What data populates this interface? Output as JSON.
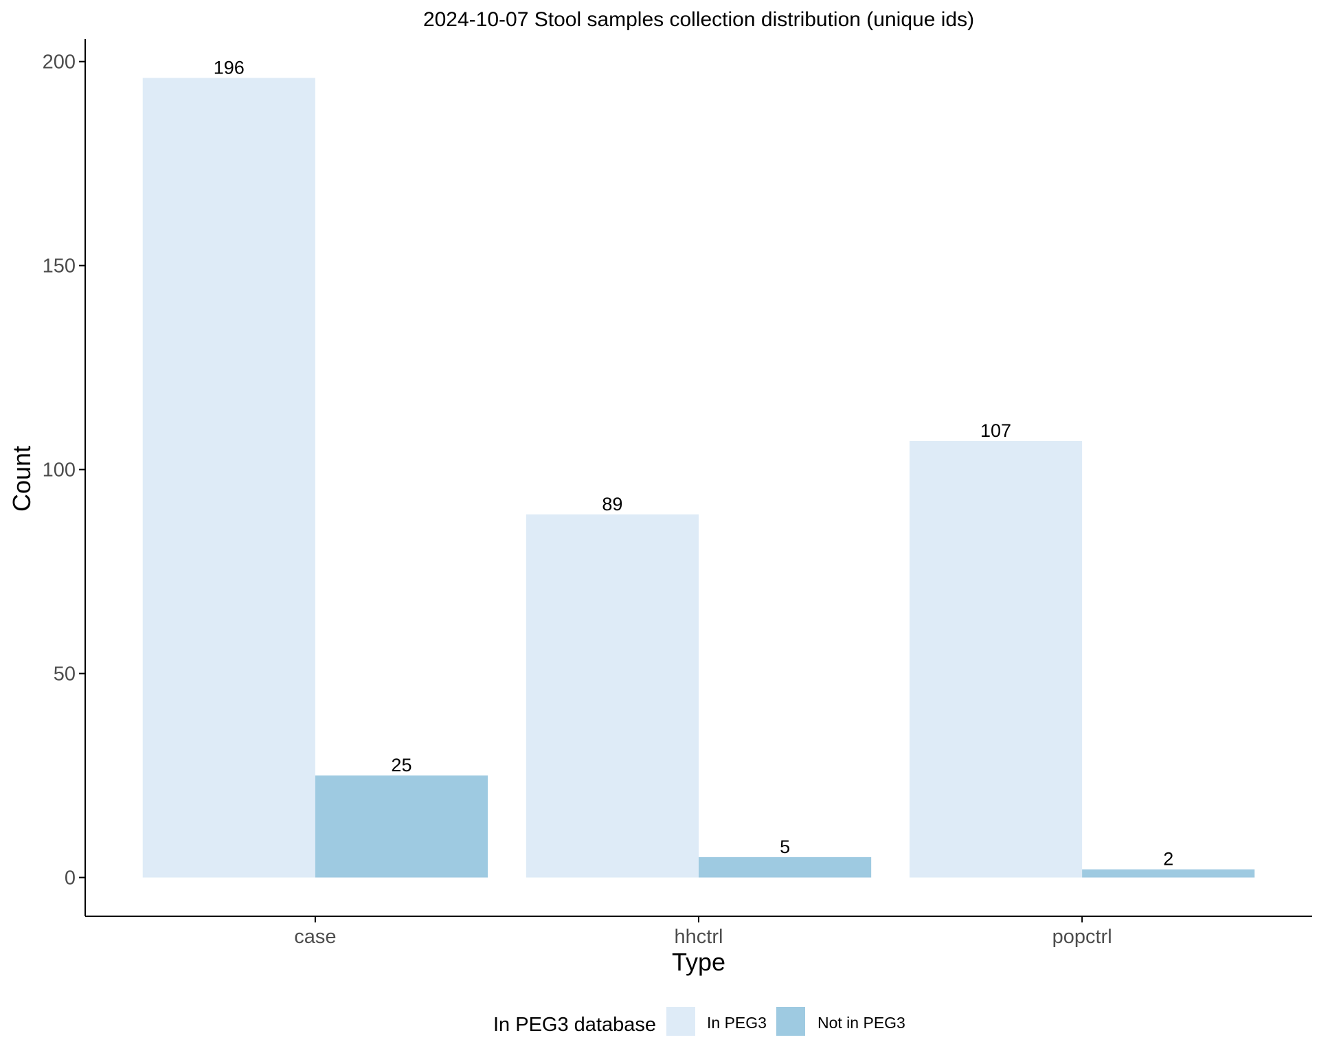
{
  "chart_data": {
    "type": "bar",
    "title": "2024-10-07 Stool samples collection distribution (unique ids)",
    "xlabel": "Type",
    "ylabel": "Count",
    "categories": [
      "case",
      "hhctrl",
      "popctrl"
    ],
    "series": [
      {
        "name": "In PEG3",
        "values": [
          196,
          89,
          107
        ],
        "color": "#deebf7"
      },
      {
        "name": "Not in PEG3",
        "values": [
          25,
          5,
          2
        ],
        "color": "#9ecae1"
      }
    ],
    "ylim": [
      -9.5,
      205.5
    ],
    "yticks": [
      0,
      50,
      100,
      150,
      200
    ],
    "grid": false,
    "legend": {
      "title": "In PEG3 database",
      "position": "bottom"
    },
    "data_labels": true
  }
}
